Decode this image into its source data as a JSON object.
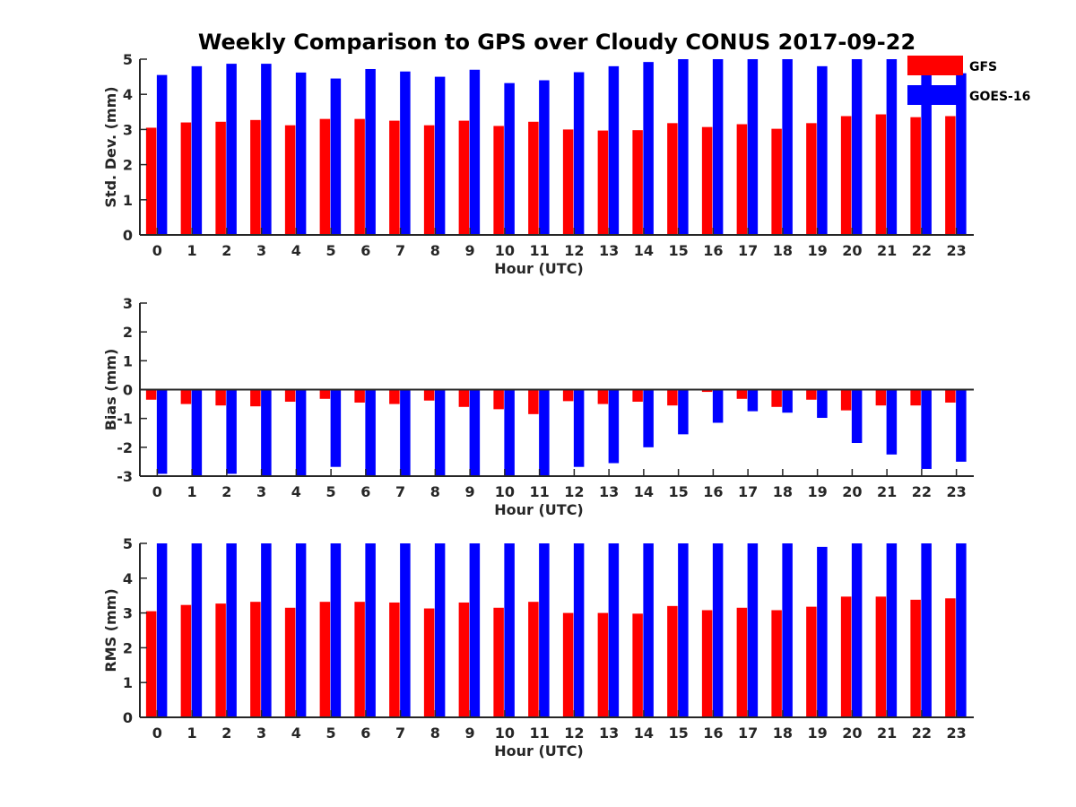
{
  "chart_data": {
    "title": "Weekly Comparison to GPS over Cloudy CONUS 2017-09-22",
    "legend": {
      "placement": "top-right",
      "entries": [
        {
          "label": "GFS",
          "color": "#ff0000"
        },
        {
          "label": "GOES-16",
          "color": "#0000ff"
        }
      ]
    },
    "panels": [
      {
        "type": "bar",
        "ylabel": "Std. Dev. (mm)",
        "xlabel": "Hour (UTC)",
        "ylim": [
          0,
          5
        ],
        "yticks": [
          "0",
          "1",
          "2",
          "3",
          "4",
          "5"
        ],
        "categories": [
          "0",
          "1",
          "2",
          "3",
          "4",
          "5",
          "6",
          "7",
          "8",
          "9",
          "10",
          "11",
          "12",
          "13",
          "14",
          "15",
          "16",
          "17",
          "18",
          "19",
          "20",
          "21",
          "22",
          "23"
        ],
        "series": [
          {
            "name": "GFS",
            "values": [
              3.05,
              3.2,
              3.22,
              3.27,
              3.12,
              3.3,
              3.3,
              3.25,
              3.12,
              3.25,
              3.1,
              3.22,
              3.0,
              2.97,
              2.98,
              3.18,
              3.07,
              3.15,
              3.02,
              3.18,
              3.38,
              3.43,
              3.35,
              3.38
            ]
          },
          {
            "name": "GOES-16",
            "values": [
              4.55,
              4.8,
              4.87,
              4.87,
              4.62,
              4.45,
              4.72,
              4.65,
              4.5,
              4.7,
              4.32,
              4.4,
              4.63,
              4.8,
              4.92,
              5.0,
              5.0,
              5.0,
              5.0,
              4.8,
              5.0,
              5.0,
              5.0,
              4.6
            ]
          }
        ]
      },
      {
        "type": "bar",
        "ylabel": "Bias (mm)",
        "xlabel": "Hour (UTC)",
        "ylim": [
          -3,
          3
        ],
        "yticks": [
          "-3",
          "-2",
          "-1",
          "0",
          "1",
          "2",
          "3"
        ],
        "categories": [
          "0",
          "1",
          "2",
          "3",
          "4",
          "5",
          "6",
          "7",
          "8",
          "9",
          "10",
          "11",
          "12",
          "13",
          "14",
          "15",
          "16",
          "17",
          "18",
          "19",
          "20",
          "21",
          "22",
          "23"
        ],
        "series": [
          {
            "name": "GFS",
            "values": [
              -0.35,
              -0.5,
              -0.55,
              -0.58,
              -0.42,
              -0.32,
              -0.45,
              -0.5,
              -0.38,
              -0.6,
              -0.68,
              -0.85,
              -0.4,
              -0.5,
              -0.42,
              -0.55,
              -0.08,
              -0.32,
              -0.6,
              -0.35,
              -0.72,
              -0.55,
              -0.55,
              -0.45
            ]
          },
          {
            "name": "GOES-16",
            "values": [
              -2.92,
              -3.0,
              -2.92,
              -3.0,
              -3.0,
              -2.68,
              -3.0,
              -3.0,
              -3.0,
              -3.0,
              -3.0,
              -3.0,
              -2.68,
              -2.55,
              -2.0,
              -1.55,
              -1.15,
              -0.75,
              -0.8,
              -0.98,
              -1.85,
              -2.25,
              -2.75,
              -2.5
            ]
          }
        ]
      },
      {
        "type": "bar",
        "ylabel": "RMS (mm)",
        "xlabel": "Hour (UTC)",
        "ylim": [
          0,
          5
        ],
        "yticks": [
          "0",
          "1",
          "2",
          "3",
          "4",
          "5"
        ],
        "categories": [
          "0",
          "1",
          "2",
          "3",
          "4",
          "5",
          "6",
          "7",
          "8",
          "9",
          "10",
          "11",
          "12",
          "13",
          "14",
          "15",
          "16",
          "17",
          "18",
          "19",
          "20",
          "21",
          "22",
          "23"
        ],
        "series": [
          {
            "name": "GFS",
            "values": [
              3.05,
              3.23,
              3.27,
              3.32,
              3.15,
              3.32,
              3.32,
              3.3,
              3.13,
              3.3,
              3.15,
              3.32,
              3.0,
              3.0,
              2.98,
              3.2,
              3.08,
              3.15,
              3.08,
              3.18,
              3.47,
              3.47,
              3.38,
              3.42
            ]
          },
          {
            "name": "GOES-16",
            "values": [
              5.0,
              5.0,
              5.0,
              5.0,
              5.0,
              5.0,
              5.0,
              5.0,
              5.0,
              5.0,
              5.0,
              5.0,
              5.0,
              5.0,
              5.0,
              5.0,
              5.0,
              5.0,
              5.0,
              4.9,
              5.0,
              5.0,
              5.0,
              5.0
            ]
          }
        ]
      }
    ]
  }
}
